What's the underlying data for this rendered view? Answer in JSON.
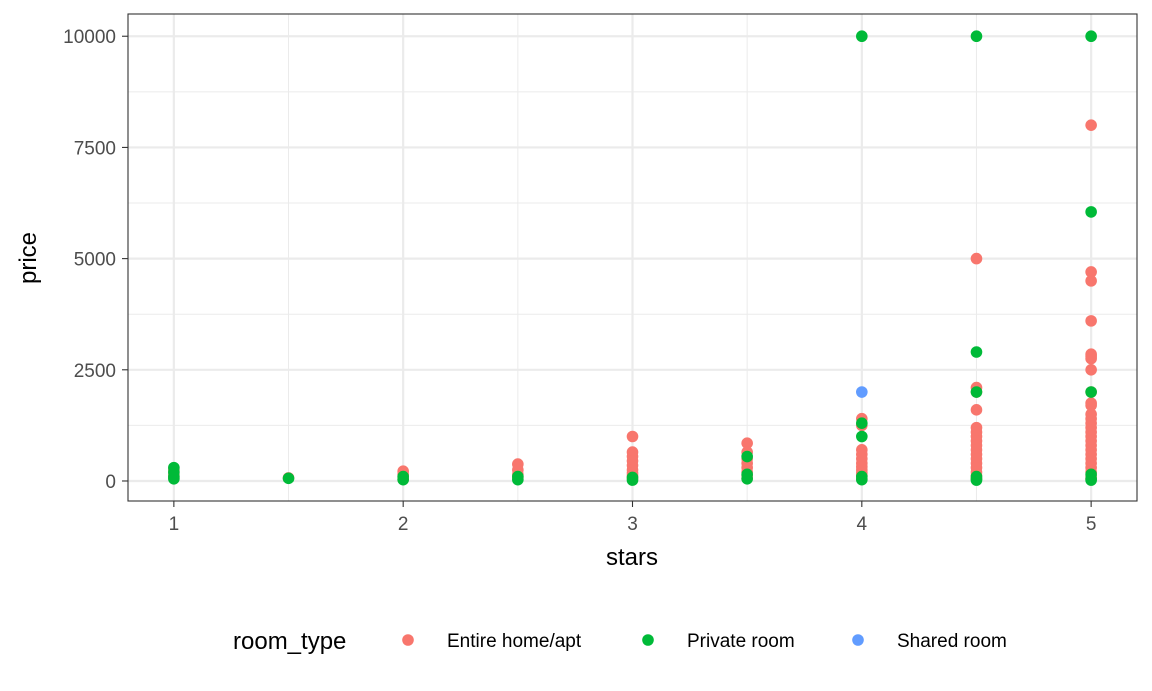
{
  "chart_data": {
    "type": "scatter",
    "title": "",
    "xlabel": "stars",
    "ylabel": "price",
    "xlim": [
      0.8,
      5.2
    ],
    "ylim": [
      -450,
      10500
    ],
    "x_ticks": [
      1,
      2,
      3,
      4,
      5
    ],
    "x_tick_labels": [
      "1",
      "2",
      "3",
      "4",
      "5"
    ],
    "x_minor": [
      1.5,
      2.5,
      3.5,
      4.5
    ],
    "y_ticks": [
      0,
      2500,
      5000,
      7500,
      10000
    ],
    "y_tick_labels": [
      "0",
      "2500",
      "5000",
      "7500",
      "10000"
    ],
    "y_minor": [
      1250,
      3750,
      6250,
      8750
    ],
    "grid": true,
    "legend": {
      "title": "room_type",
      "position": "bottom",
      "entries": [
        "Entire home/apt",
        "Private room",
        "Shared room"
      ]
    },
    "series": [
      {
        "name": "Entire home/apt",
        "color": "#F8766D",
        "points": [
          [
            1,
            250
          ],
          [
            1,
            150
          ],
          [
            1,
            80
          ],
          [
            1.5,
            70
          ],
          [
            2,
            220
          ],
          [
            2,
            150
          ],
          [
            2,
            80
          ],
          [
            2,
            40
          ],
          [
            2.5,
            380
          ],
          [
            2.5,
            250
          ],
          [
            2.5,
            150
          ],
          [
            2.5,
            80
          ],
          [
            3,
            1000
          ],
          [
            3,
            650
          ],
          [
            3,
            550
          ],
          [
            3,
            450
          ],
          [
            3,
            350
          ],
          [
            3,
            250
          ],
          [
            3,
            180
          ],
          [
            3,
            120
          ],
          [
            3,
            60
          ],
          [
            3.5,
            850
          ],
          [
            3.5,
            650
          ],
          [
            3.5,
            500
          ],
          [
            3.5,
            400
          ],
          [
            3.5,
            300
          ],
          [
            3.5,
            200
          ],
          [
            3.5,
            120
          ],
          [
            3.5,
            60
          ],
          [
            4,
            1400
          ],
          [
            4,
            1250
          ],
          [
            4,
            700
          ],
          [
            4,
            600
          ],
          [
            4,
            500
          ],
          [
            4,
            400
          ],
          [
            4,
            320
          ],
          [
            4,
            250
          ],
          [
            4,
            180
          ],
          [
            4,
            120
          ],
          [
            4,
            60
          ],
          [
            4.5,
            5000
          ],
          [
            4.5,
            2100
          ],
          [
            4.5,
            2000
          ],
          [
            4.5,
            1600
          ],
          [
            4.5,
            1200
          ],
          [
            4.5,
            1100
          ],
          [
            4.5,
            1000
          ],
          [
            4.5,
            900
          ],
          [
            4.5,
            800
          ],
          [
            4.5,
            700
          ],
          [
            4.5,
            600
          ],
          [
            4.5,
            500
          ],
          [
            4.5,
            400
          ],
          [
            4.5,
            300
          ],
          [
            4.5,
            200
          ],
          [
            4.5,
            120
          ],
          [
            4.5,
            60
          ],
          [
            5,
            8000
          ],
          [
            5,
            4700
          ],
          [
            5,
            4500
          ],
          [
            5,
            3600
          ],
          [
            5,
            2850
          ],
          [
            5,
            2800
          ],
          [
            5,
            2750
          ],
          [
            5,
            2500
          ],
          [
            5,
            2000
          ],
          [
            5,
            1750
          ],
          [
            5,
            1700
          ],
          [
            5,
            1500
          ],
          [
            5,
            1400
          ],
          [
            5,
            1300
          ],
          [
            5,
            1200
          ],
          [
            5,
            1100
          ],
          [
            5,
            1000
          ],
          [
            5,
            900
          ],
          [
            5,
            800
          ],
          [
            5,
            700
          ],
          [
            5,
            600
          ],
          [
            5,
            500
          ],
          [
            5,
            400
          ],
          [
            5,
            300
          ],
          [
            5,
            200
          ],
          [
            5,
            100
          ],
          [
            5,
            50
          ]
        ]
      },
      {
        "name": "Private room",
        "color": "#00BA38",
        "points": [
          [
            1,
            300
          ],
          [
            1,
            200
          ],
          [
            1,
            100
          ],
          [
            1,
            50
          ],
          [
            1.5,
            60
          ],
          [
            2,
            100
          ],
          [
            2,
            30
          ],
          [
            2.5,
            100
          ],
          [
            2.5,
            30
          ],
          [
            3,
            80
          ],
          [
            3,
            20
          ],
          [
            3.5,
            550
          ],
          [
            3.5,
            150
          ],
          [
            3.5,
            50
          ],
          [
            4,
            10000
          ],
          [
            4,
            1300
          ],
          [
            4,
            1000
          ],
          [
            4,
            100
          ],
          [
            4,
            30
          ],
          [
            4.5,
            10000
          ],
          [
            4.5,
            2900
          ],
          [
            4.5,
            2000
          ],
          [
            4.5,
            100
          ],
          [
            4.5,
            50
          ],
          [
            4.5,
            20
          ],
          [
            5,
            10000
          ],
          [
            5,
            6050
          ],
          [
            5,
            2000
          ],
          [
            5,
            150
          ],
          [
            5,
            50
          ],
          [
            5,
            20
          ]
        ]
      },
      {
        "name": "Shared room",
        "color": "#619CFF",
        "points": [
          [
            4,
            2000
          ]
        ]
      }
    ]
  }
}
